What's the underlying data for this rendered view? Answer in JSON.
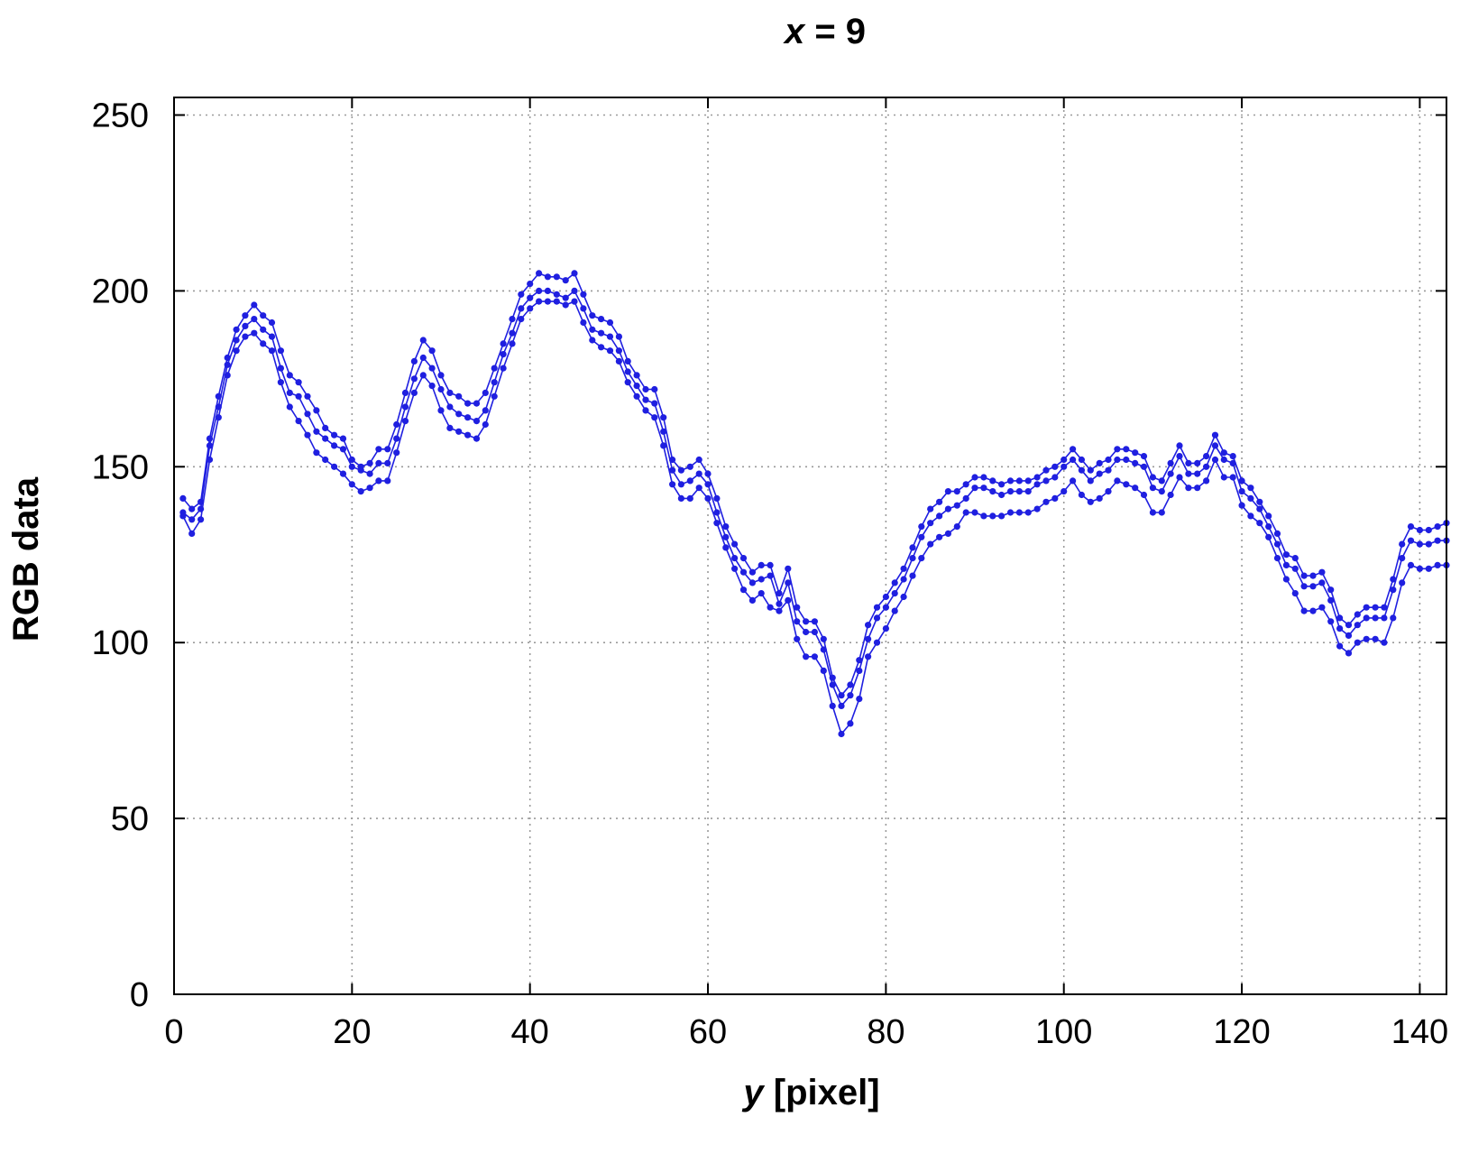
{
  "chart_data": {
    "type": "line",
    "title_var": "x",
    "title_rest": " = 9",
    "xlabel_var": "y",
    "xlabel_rest": " [pixel]",
    "ylabel": "RGB data",
    "xlim": [
      0,
      143
    ],
    "ylim": [
      0,
      255
    ],
    "xticks": [
      0,
      20,
      40,
      60,
      80,
      100,
      120,
      140
    ],
    "yticks": [
      0,
      50,
      100,
      150,
      200,
      250
    ],
    "grid": true,
    "legend": "none",
    "color": "#1f1fe0",
    "x": [
      1,
      2,
      3,
      4,
      5,
      6,
      7,
      8,
      9,
      10,
      11,
      12,
      13,
      14,
      15,
      16,
      17,
      18,
      19,
      20,
      21,
      22,
      23,
      24,
      25,
      26,
      27,
      28,
      29,
      30,
      31,
      32,
      33,
      34,
      35,
      36,
      37,
      38,
      39,
      40,
      41,
      42,
      43,
      44,
      45,
      46,
      47,
      48,
      49,
      50,
      51,
      52,
      53,
      54,
      55,
      56,
      57,
      58,
      59,
      60,
      61,
      62,
      63,
      64,
      65,
      66,
      67,
      68,
      69,
      70,
      71,
      72,
      73,
      74,
      75,
      76,
      77,
      78,
      79,
      80,
      81,
      82,
      83,
      84,
      85,
      86,
      87,
      88,
      89,
      90,
      91,
      92,
      93,
      94,
      95,
      96,
      97,
      98,
      99,
      100,
      101,
      102,
      103,
      104,
      105,
      106,
      107,
      108,
      109,
      110,
      111,
      112,
      113,
      114,
      115,
      116,
      117,
      118,
      119,
      120,
      121,
      122,
      123,
      124,
      125,
      126,
      127,
      128,
      129,
      130,
      131,
      132,
      133,
      134,
      135,
      136,
      137,
      138,
      139,
      140,
      141,
      142,
      143
    ],
    "series": [
      {
        "values": [
          141,
          138,
          140,
          158,
          170,
          181,
          189,
          193,
          196,
          193,
          191,
          183,
          176,
          174,
          170,
          166,
          161,
          159,
          158,
          152,
          150,
          151,
          155,
          155,
          162,
          171,
          180,
          186,
          183,
          176,
          171,
          170,
          168,
          168,
          171,
          178,
          185,
          192,
          199,
          202,
          205,
          204,
          204,
          203,
          205,
          199,
          193,
          192,
          191,
          187,
          180,
          176,
          172,
          172,
          164,
          152,
          149,
          150,
          152,
          148,
          141,
          133,
          128,
          124,
          120,
          122,
          122,
          114,
          121,
          110,
          106,
          106,
          101,
          90,
          85,
          88,
          95,
          105,
          110,
          113,
          117,
          121,
          127,
          133,
          138,
          140,
          143,
          143,
          145,
          147,
          147,
          146,
          145,
          146,
          146,
          146,
          147,
          149,
          150,
          152,
          155,
          152,
          149,
          151,
          152,
          155,
          155,
          154,
          153,
          147,
          146,
          151,
          156,
          151,
          151,
          153,
          159,
          154,
          153,
          146,
          144,
          140,
          136,
          131,
          125,
          124,
          119,
          119,
          120,
          115,
          107,
          105,
          108,
          110,
          110,
          110,
          118,
          128,
          133,
          132,
          132,
          133,
          134
        ]
      },
      {
        "values": [
          137,
          135,
          138,
          156,
          167,
          179,
          186,
          190,
          192,
          189,
          187,
          178,
          171,
          170,
          165,
          160,
          158,
          156,
          155,
          150,
          149,
          148,
          151,
          151,
          158,
          167,
          175,
          181,
          178,
          172,
          167,
          165,
          164,
          163,
          166,
          174,
          182,
          188,
          195,
          198,
          200,
          200,
          199,
          198,
          200,
          195,
          189,
          188,
          187,
          183,
          177,
          173,
          169,
          168,
          160,
          149,
          145,
          146,
          148,
          145,
          137,
          130,
          124,
          120,
          117,
          118,
          119,
          111,
          117,
          106,
          103,
          103,
          98,
          88,
          82,
          85,
          92,
          101,
          107,
          110,
          114,
          118,
          124,
          130,
          134,
          136,
          138,
          139,
          141,
          144,
          144,
          143,
          142,
          143,
          143,
          143,
          145,
          146,
          147,
          150,
          152,
          149,
          146,
          148,
          149,
          152,
          152,
          151,
          150,
          144,
          143,
          148,
          153,
          148,
          148,
          150,
          156,
          152,
          151,
          143,
          141,
          138,
          133,
          128,
          122,
          121,
          116,
          116,
          117,
          112,
          104,
          102,
          105,
          107,
          107,
          107,
          115,
          124,
          129,
          128,
          128,
          129,
          129
        ]
      },
      {
        "values": [
          136,
          131,
          135,
          152,
          164,
          176,
          183,
          187,
          188,
          185,
          183,
          174,
          167,
          163,
          159,
          154,
          152,
          150,
          148,
          145,
          143,
          144,
          146,
          146,
          154,
          163,
          171,
          176,
          173,
          166,
          161,
          160,
          159,
          158,
          162,
          170,
          178,
          185,
          192,
          195,
          197,
          197,
          197,
          196,
          197,
          191,
          186,
          184,
          183,
          180,
          174,
          170,
          166,
          164,
          156,
          145,
          141,
          141,
          144,
          141,
          134,
          127,
          121,
          115,
          112,
          114,
          110,
          109,
          112,
          101,
          96,
          96,
          92,
          82,
          74,
          77,
          84,
          96,
          100,
          104,
          109,
          113,
          119,
          124,
          128,
          130,
          131,
          133,
          137,
          137,
          136,
          136,
          136,
          137,
          137,
          137,
          138,
          140,
          141,
          143,
          146,
          142,
          140,
          141,
          143,
          146,
          145,
          144,
          142,
          137,
          137,
          142,
          147,
          144,
          144,
          146,
          152,
          147,
          147,
          139,
          136,
          134,
          130,
          124,
          118,
          114,
          109,
          109,
          110,
          106,
          99,
          97,
          100,
          101,
          101,
          100,
          107,
          117,
          122,
          121,
          121,
          122,
          122
        ]
      }
    ]
  }
}
